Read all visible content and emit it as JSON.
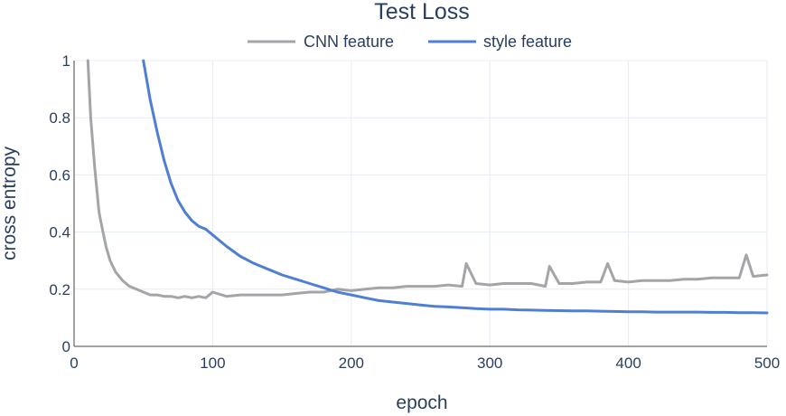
{
  "chart_data": {
    "type": "line",
    "title": "Test Loss",
    "xlabel": "epoch",
    "ylabel": "cross entropy",
    "xlim": [
      0,
      500
    ],
    "ylim": [
      0,
      1
    ],
    "xticks": [
      "0",
      "100",
      "200",
      "300",
      "400",
      "500"
    ],
    "yticks": [
      "0",
      "0.2",
      "0.4",
      "0.6",
      "0.8",
      "1"
    ],
    "grid": true,
    "legend_position": "top-center",
    "series": [
      {
        "name": "CNN feature",
        "color": "#a3a5a8",
        "x": [
          10,
          12,
          15,
          18,
          20,
          23,
          26,
          30,
          35,
          40,
          45,
          50,
          55,
          60,
          65,
          70,
          75,
          80,
          85,
          90,
          95,
          100,
          110,
          120,
          130,
          140,
          150,
          160,
          170,
          180,
          190,
          200,
          210,
          220,
          230,
          240,
          250,
          260,
          270,
          280,
          283,
          290,
          300,
          310,
          320,
          330,
          340,
          343,
          350,
          360,
          370,
          380,
          385,
          390,
          400,
          410,
          420,
          430,
          440,
          450,
          460,
          470,
          480,
          485,
          490,
          500
        ],
        "y": [
          1.0,
          0.8,
          0.62,
          0.47,
          0.42,
          0.35,
          0.3,
          0.26,
          0.23,
          0.21,
          0.2,
          0.19,
          0.18,
          0.18,
          0.175,
          0.175,
          0.17,
          0.175,
          0.17,
          0.175,
          0.17,
          0.19,
          0.175,
          0.18,
          0.18,
          0.18,
          0.18,
          0.185,
          0.19,
          0.19,
          0.2,
          0.195,
          0.2,
          0.205,
          0.205,
          0.21,
          0.21,
          0.21,
          0.215,
          0.21,
          0.29,
          0.22,
          0.215,
          0.22,
          0.22,
          0.22,
          0.21,
          0.28,
          0.22,
          0.22,
          0.225,
          0.225,
          0.29,
          0.23,
          0.225,
          0.23,
          0.23,
          0.23,
          0.235,
          0.235,
          0.24,
          0.24,
          0.24,
          0.32,
          0.245,
          0.25
        ]
      },
      {
        "name": "style feature",
        "color": "#4f7fd4",
        "x": [
          50,
          55,
          60,
          65,
          70,
          75,
          80,
          85,
          90,
          95,
          100,
          110,
          120,
          130,
          140,
          150,
          160,
          170,
          180,
          190,
          200,
          210,
          220,
          230,
          240,
          250,
          260,
          270,
          280,
          290,
          300,
          310,
          320,
          330,
          340,
          350,
          360,
          370,
          380,
          390,
          400,
          410,
          420,
          430,
          440,
          450,
          460,
          470,
          480,
          490,
          500
        ],
        "y": [
          1.0,
          0.86,
          0.75,
          0.65,
          0.57,
          0.51,
          0.47,
          0.44,
          0.42,
          0.41,
          0.39,
          0.35,
          0.315,
          0.29,
          0.27,
          0.25,
          0.235,
          0.22,
          0.205,
          0.19,
          0.18,
          0.17,
          0.16,
          0.155,
          0.15,
          0.145,
          0.14,
          0.138,
          0.135,
          0.132,
          0.13,
          0.13,
          0.128,
          0.127,
          0.126,
          0.125,
          0.124,
          0.124,
          0.123,
          0.122,
          0.121,
          0.121,
          0.12,
          0.12,
          0.12,
          0.12,
          0.119,
          0.119,
          0.118,
          0.118,
          0.117
        ]
      }
    ]
  }
}
